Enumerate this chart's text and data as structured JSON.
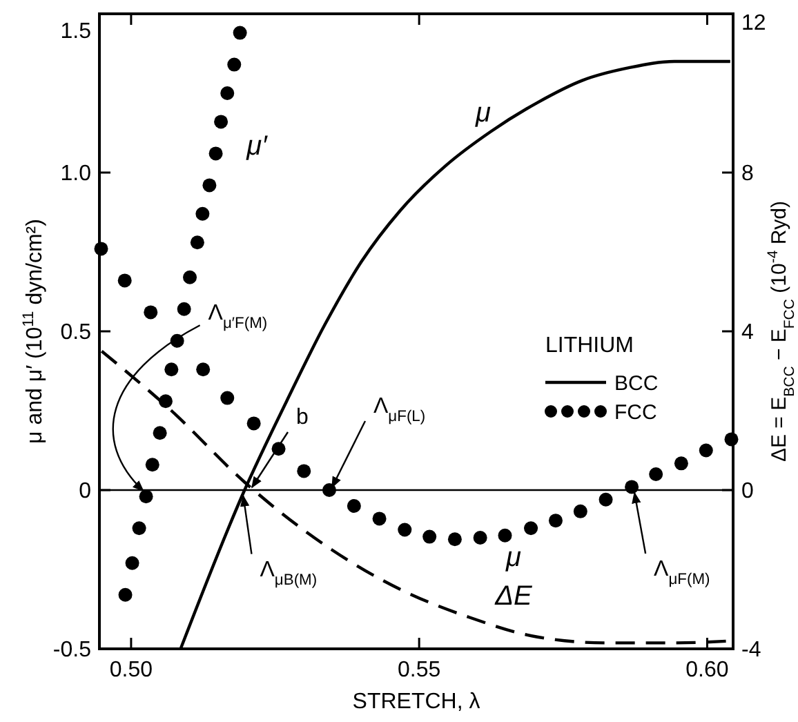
{
  "chart_data": {
    "type": "line",
    "xlabel": "STRETCH, λ",
    "ylabel": "μ and μ′ (10$^{11}$ dyn/cm²)",
    "y2label": "ΔE = E$_{BCC}$ − E$_{FCC}$  (10$^{-4}$ Ryd)",
    "legend_title": "LITHIUM",
    "legend": "right",
    "grid": false,
    "xlim": [
      0.4945,
      0.6045
    ],
    "xticks": [
      {
        "value": 0.5,
        "label": "0.50"
      },
      0.55,
      {
        "value": 0.6,
        "label": "0.60"
      }
    ],
    "ylim": [
      -0.5,
      1.5
    ],
    "yticks": [
      -0.5,
      0,
      0.5,
      {
        "value": 1,
        "label": "1.0"
      },
      1.5
    ],
    "y2lim": [
      -4,
      12
    ],
    "y2ticks": [
      -4,
      0,
      4,
      8,
      12
    ],
    "ref_lines": [
      {
        "axis": "y",
        "value": 0
      }
    ],
    "series": [
      {
        "name": "BCC",
        "color": "#000000",
        "x": [
          0.5086,
          0.5197,
          0.527,
          0.5336,
          0.54,
          0.5467,
          0.5545,
          0.5625,
          0.5705,
          0.5783,
          0.5864,
          0.5943,
          0.604
        ],
        "values": [
          -0.5,
          0,
          0.28,
          0.52,
          0.72,
          0.88,
          1.02,
          1.13,
          1.22,
          1.29,
          1.33,
          1.35,
          1.35
        ]
      },
      {
        "name": "FCC",
        "type": "scatter",
        "marker": "circle",
        "color": "#000000",
        "x": [
          0.4948,
          0.4989,
          0.5034,
          0.508,
          0.5125,
          0.5167,
          0.5213,
          0.5256,
          0.53,
          0.5344,
          0.5387,
          0.5431,
          0.5475,
          0.5518,
          0.5562,
          0.5606,
          0.5649,
          0.5694,
          0.5737,
          0.578,
          0.5824,
          0.5869,
          0.5911,
          0.5955,
          0.5998,
          0.6042
        ],
        "values": [
          0.76,
          0.66,
          0.56,
          0.47,
          0.38,
          0.29,
          0.21,
          0.13,
          0.06,
          0.0,
          -0.05,
          -0.09,
          -0.125,
          -0.147,
          -0.155,
          -0.15,
          -0.143,
          -0.12,
          -0.096,
          -0.067,
          -0.03,
          0.01,
          0.05,
          0.084,
          0.125,
          0.16
        ]
      },
      {
        "type": "scatter",
        "marker": "circle",
        "color": "#000000",
        "x": [
          0.499,
          0.5002,
          0.5014,
          0.5026,
          0.5037,
          0.505,
          0.506,
          0.507,
          0.5092,
          0.5102,
          0.5115,
          0.5124,
          0.5136,
          0.5147,
          0.5156,
          0.5167,
          0.5179,
          0.5189
        ],
        "values": [
          -0.33,
          -0.23,
          -0.12,
          -0.02,
          0.08,
          0.18,
          0.28,
          0.38,
          0.57,
          0.67,
          0.78,
          0.87,
          0.96,
          1.06,
          1.16,
          1.25,
          1.34,
          1.44
        ]
      },
      {
        "axis": "y2",
        "line_style": "dashed",
        "color": "#000000",
        "x": [
          0.4949,
          0.507,
          0.5197,
          0.5348,
          0.5467,
          0.5586,
          0.5705,
          0.5824,
          0.5943,
          0.6042
        ],
        "values": [
          3.5,
          2.0,
          0.2,
          -1.5,
          -2.5,
          -3.2,
          -3.7,
          -3.85,
          -3.85,
          -3.8
        ]
      }
    ],
    "annotations": [
      "μ′",
      "μ",
      "μ",
      "ΔE",
      {
        "text": "Λ$_{μ′F(M)}$",
        "x": 0.5026,
        "y": -0.02
      },
      {
        "text": "b",
        "x": 0.5205,
        "y": 0.0
      },
      {
        "text": "Λ$_{μF(L)}$",
        "x": 0.5344,
        "y": 0.0
      },
      {
        "text": "Λ$_{μB(M)}$",
        "x": 0.519,
        "y": -0.01
      },
      {
        "text": "Λ$_{μF(M)}$",
        "x": 0.5869,
        "y": 0.0
      }
    ]
  }
}
